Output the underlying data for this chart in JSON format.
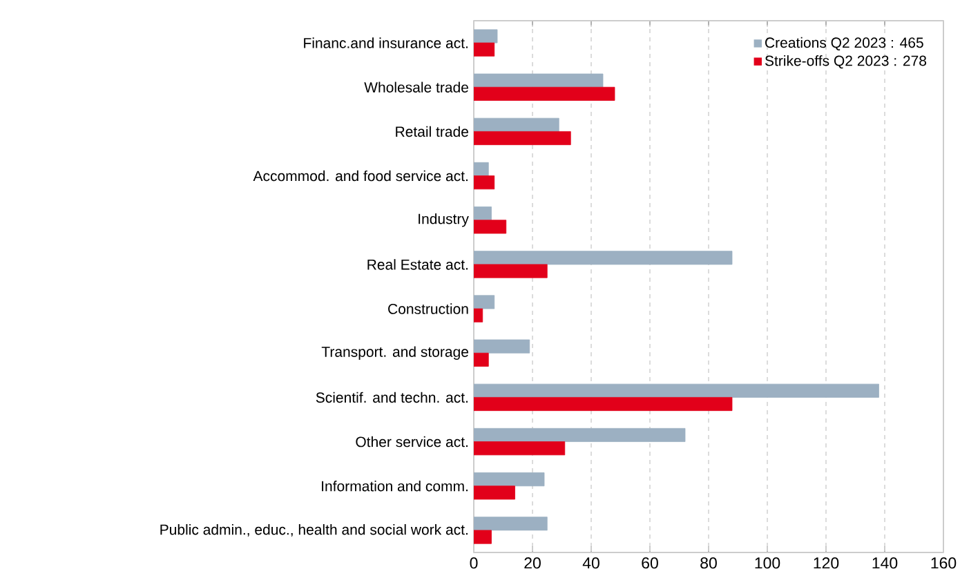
{
  "chart_data": {
    "type": "bar",
    "orientation": "horizontal",
    "categories": [
      "Financ.and insurance act.",
      "Wholesale trade",
      "Retail trade",
      "Accommod. and food service act.",
      "Industry",
      "Real Estate act.",
      "Construction",
      "Transport. and storage",
      "Scientif. and techn. act.",
      "Other service act.",
      "Information and comm.",
      "Public admin., educ., health and social work act."
    ],
    "series": [
      {
        "name": "Creations Q2 2023 : 465",
        "color": "#9cb0c2",
        "values": [
          8,
          44,
          29,
          5,
          6,
          88,
          7,
          19,
          138,
          72,
          24,
          25
        ]
      },
      {
        "name": "Strike-offs Q2 2023 : 278",
        "color": "#e2001a",
        "values": [
          7,
          48,
          33,
          7,
          11,
          25,
          3,
          5,
          88,
          31,
          14,
          6
        ]
      }
    ],
    "xlim": [
      0,
      160
    ],
    "xticks": [
      0,
      20,
      40,
      60,
      80,
      100,
      120,
      140,
      160
    ],
    "grid": "x",
    "legend": "top right"
  }
}
